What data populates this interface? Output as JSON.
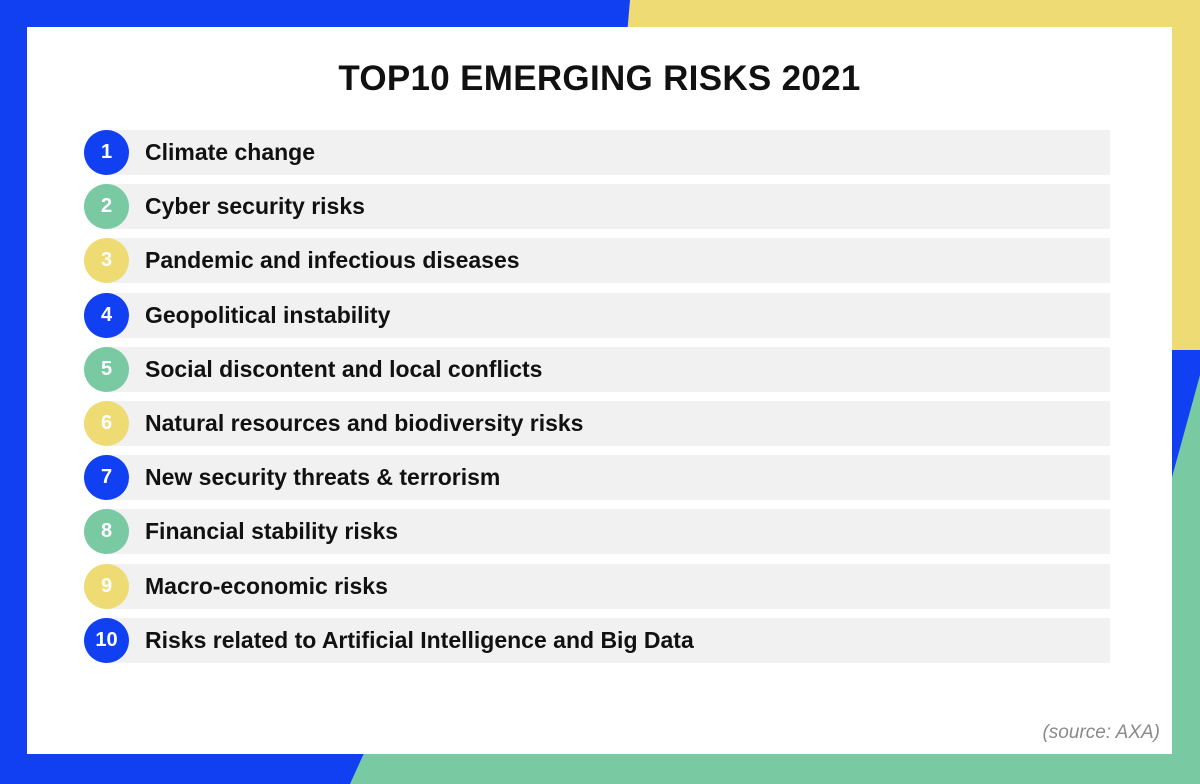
{
  "title": "TOP10 EMERGING RISKS 2021",
  "source": "(source: AXA)",
  "colors": {
    "blue": "#1140f2",
    "green": "#79c9a3",
    "yellow": "#eedb73",
    "bar": "#f1f1f1"
  },
  "items": [
    {
      "rank": "1",
      "label": "Climate change",
      "color": "#1140f2"
    },
    {
      "rank": "2",
      "label": "Cyber security risks",
      "color": "#79c9a3"
    },
    {
      "rank": "3",
      "label": "Pandemic and infectious diseases",
      "color": "#eedb73"
    },
    {
      "rank": "4",
      "label": "Geopolitical instability",
      "color": "#1140f2"
    },
    {
      "rank": "5",
      "label": "Social discontent and local conflicts",
      "color": "#79c9a3"
    },
    {
      "rank": "6",
      "label": "Natural resources and biodiversity risks",
      "color": "#eedb73"
    },
    {
      "rank": "7",
      "label": "New security threats & terrorism",
      "color": "#1140f2"
    },
    {
      "rank": "8",
      "label": "Financial stability risks",
      "color": "#79c9a3"
    },
    {
      "rank": "9",
      "label": "Macro-economic risks",
      "color": "#eedb73"
    },
    {
      "rank": "10",
      "label": "Risks related to Artificial Intelligence and Big Data",
      "color": "#1140f2"
    }
  ]
}
